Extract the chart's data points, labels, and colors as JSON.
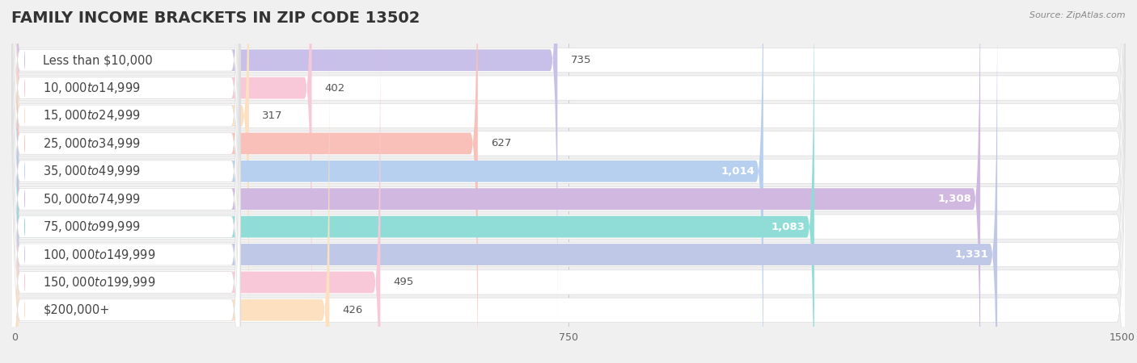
{
  "title": "FAMILY INCOME BRACKETS IN ZIP CODE 13502",
  "source": "Source: ZipAtlas.com",
  "categories": [
    "Less than $10,000",
    "$10,000 to $14,999",
    "$15,000 to $24,999",
    "$25,000 to $34,999",
    "$35,000 to $49,999",
    "$50,000 to $74,999",
    "$75,000 to $99,999",
    "$100,000 to $149,999",
    "$150,000 to $199,999",
    "$200,000+"
  ],
  "values": [
    735,
    402,
    317,
    627,
    1014,
    1308,
    1083,
    1331,
    495,
    426
  ],
  "bar_colors": [
    "#a8a0d0",
    "#f4a0b8",
    "#f8cca0",
    "#f0a090",
    "#90b8e8",
    "#b090c8",
    "#40c0b0",
    "#a0a8d8",
    "#f4a0b8",
    "#f8cca0"
  ],
  "bar_colors_light": [
    "#c8c0e8",
    "#f8c8d8",
    "#fce0c0",
    "#f8c0b8",
    "#b8d0f0",
    "#d0b8e0",
    "#90ddd8",
    "#c0c8e8",
    "#f8c8d8",
    "#fce0c0"
  ],
  "xlim": [
    0,
    1500
  ],
  "xticks": [
    0,
    750,
    1500
  ],
  "background_color": "#f0f0f0",
  "bar_row_color": "#ffffff",
  "title_fontsize": 14,
  "label_fontsize": 10.5,
  "value_fontsize": 9.5
}
